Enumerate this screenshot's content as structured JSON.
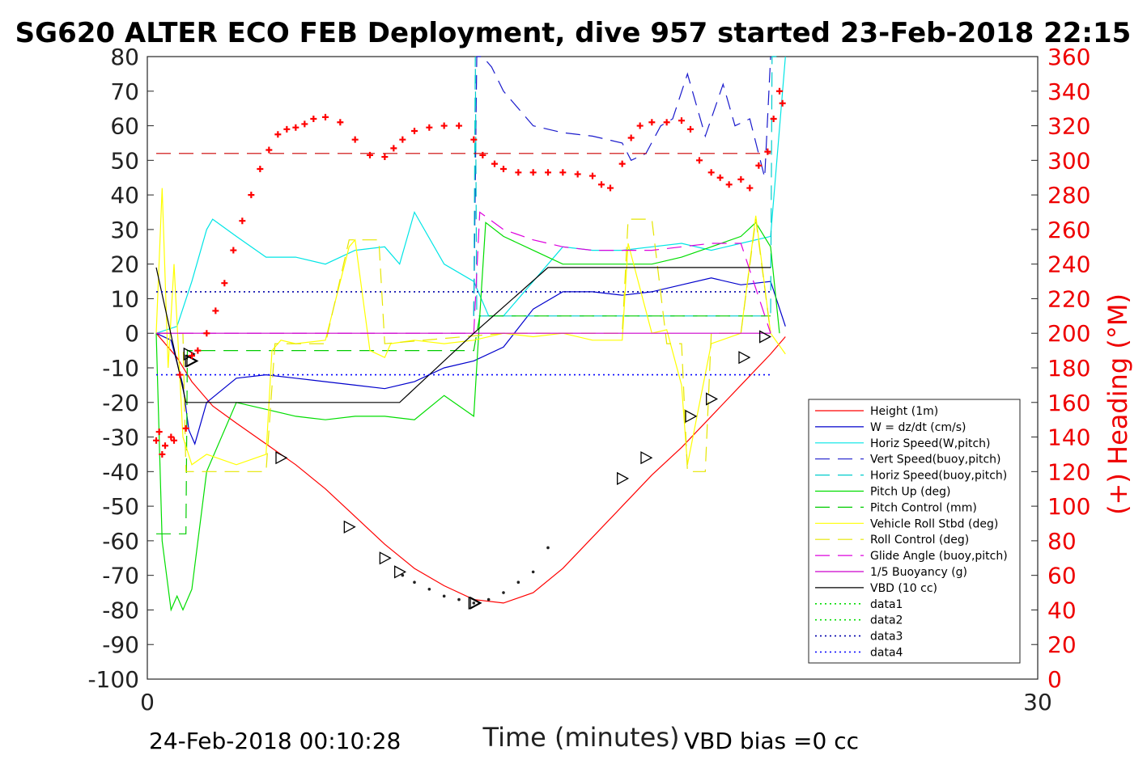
{
  "title": "SG620 ALTER ECO FEB Deployment, dive 957 started 23-Feb-2018 22:15",
  "footer": {
    "end_time": "24-Feb-2018 00:10:28",
    "vbd_bias": "VBD bias =0 cc"
  },
  "colors": {
    "height": "#ff0000",
    "w": "#0000cc",
    "horiz_speed": "#00e5e5",
    "vert_speed_buoy": "#1a1acc",
    "horiz_speed_buoy": "#00cccc",
    "pitch_up": "#00dd00",
    "pitch_control": "#00cc00",
    "vehicle_roll": "#ffff00",
    "roll_control": "#e6e600",
    "glide_angle": "#dd00dd",
    "buoyancy": "#cc00cc",
    "vbd": "#000000",
    "data1": "#00dd00",
    "data2": "#00dd00",
    "data3": "#0000aa",
    "data4": "#0000ff",
    "heading": "#ff0000"
  },
  "chart_data": {
    "type": "line",
    "title": "SG620 ALTER ECO FEB Deployment, dive 957 started 23-Feb-2018 22:15",
    "xlabel": "Time (minutes)",
    "ylabel": "",
    "y2label": "(+) Heading (°M)",
    "xlim": [
      0,
      30
    ],
    "ylim": [
      -100,
      80
    ],
    "y2lim": [
      0,
      360
    ],
    "x_ticks": [
      0,
      30
    ],
    "y_ticks": [
      80,
      70,
      60,
      50,
      40,
      30,
      20,
      10,
      0,
      -10,
      -20,
      -30,
      -40,
      -50,
      -60,
      -70,
      -80,
      -90,
      -100
    ],
    "y2_ticks": [
      360,
      340,
      320,
      300,
      280,
      260,
      240,
      220,
      200,
      180,
      160,
      140,
      120,
      100,
      80,
      60,
      40,
      20,
      0
    ],
    "legend_position": "lower-right",
    "legend": [
      "Height (1m)",
      "W = dz/dt (cm/s)",
      "Horiz Speed(W,pitch)",
      "Vert Speed(buoy,pitch)",
      "Horiz Speed(buoy,pitch)",
      "Pitch Up (deg)",
      "Pitch Control (mm)",
      "Vehicle Roll Stbd (deg)",
      "Roll Control (deg)",
      "Glide Angle (buoy,pitch)",
      "1/5 Buoyancy (g)",
      "VBD (10 cc)",
      "data1",
      "data2",
      "data3",
      "data4"
    ],
    "series": [
      {
        "name": "Height (1m)",
        "style": "solid",
        "color": "#ff0000",
        "x": [
          0.3,
          1.0,
          1.5,
          2.2,
          3.0,
          4.0,
          5.0,
          6.0,
          7.0,
          8.0,
          9.0,
          10.0,
          11.0,
          12.0,
          13.0,
          14.0,
          15.0,
          16.0,
          17.0,
          18.0,
          19.0,
          20.0,
          21.0,
          21.5
        ],
        "y": [
          0,
          -7,
          -14,
          -21,
          -26,
          -32,
          -38,
          -45,
          -53,
          -61,
          -68,
          -73,
          -77,
          -78,
          -75,
          -68,
          -59,
          -50,
          -41,
          -33,
          -24,
          -15,
          -6,
          -1
        ]
      },
      {
        "name": "W = dz/dt (cm/s)",
        "style": "solid",
        "color": "#0000cc",
        "x": [
          0.3,
          0.8,
          1.2,
          1.4,
          1.6,
          2.0,
          3.0,
          4.0,
          5.0,
          6.0,
          7.0,
          8.0,
          9.0,
          10.0,
          11.0,
          12.0,
          13.0,
          14.0,
          15.0,
          16.0,
          17.0,
          18.0,
          19.0,
          20.0,
          21.0,
          21.5
        ],
        "y": [
          0,
          -2,
          -15,
          -28,
          -32,
          -20,
          -13,
          -12,
          -13,
          -14,
          -15,
          -16,
          -14,
          -10,
          -8,
          -4,
          7,
          12,
          12,
          11,
          12,
          14,
          16,
          14,
          15,
          2
        ]
      },
      {
        "name": "Horiz Speed(W,pitch)",
        "style": "solid",
        "color": "#00e5e5",
        "x": [
          0.3,
          1.0,
          1.5,
          2.0,
          2.2,
          3.0,
          4.0,
          5.0,
          6.0,
          7.0,
          8.0,
          8.5,
          9.0,
          10.0,
          11.0,
          11.5,
          12.0,
          13.0,
          14.0,
          15.0,
          16.0,
          17.0,
          18.0,
          19.0,
          20.0,
          21.0,
          21.5
        ],
        "y": [
          0,
          2,
          15,
          30,
          33,
          28,
          22,
          22,
          20,
          24,
          25,
          20,
          35,
          20,
          15,
          5,
          5,
          15,
          25,
          24,
          24,
          25,
          26,
          24,
          26,
          28,
          80
        ]
      },
      {
        "name": "Vert Speed(buoy,pitch)",
        "style": "dashed",
        "color": "#1a1acc",
        "x": [
          11.0,
          11.1,
          11.3,
          11.6,
          12.0,
          13.0,
          14.0,
          15.0,
          16.0,
          16.3,
          16.8,
          17.3,
          17.7,
          18.2,
          18.8,
          19.4,
          19.8,
          20.3,
          20.8,
          21.0
        ],
        "y": [
          5,
          80,
          80,
          77,
          70,
          60,
          58,
          57,
          55,
          50,
          52,
          60,
          62,
          75,
          57,
          72,
          60,
          62,
          45,
          80
        ]
      },
      {
        "name": "Horiz Speed(buoy,pitch)",
        "style": "dashed",
        "color": "#00cccc",
        "x": [
          11.0,
          11.05,
          11.1,
          21.0,
          21.05,
          21.2
        ],
        "y": [
          5,
          80,
          5,
          5,
          80,
          80
        ]
      },
      {
        "name": "Pitch Up (deg)",
        "style": "solid",
        "color": "#00dd00",
        "x": [
          0.3,
          0.5,
          0.8,
          1.0,
          1.2,
          1.5,
          2.0,
          3.0,
          4.0,
          5.0,
          6.0,
          7.0,
          8.0,
          9.0,
          10.0,
          11.0,
          11.2,
          11.4,
          12.0,
          13.0,
          14.0,
          15.0,
          16.0,
          17.0,
          18.0,
          19.0,
          20.0,
          20.5,
          21.0,
          21.3
        ],
        "y": [
          0,
          -60,
          -80,
          -76,
          -80,
          -74,
          -40,
          -20,
          -22,
          -24,
          -25,
          -24,
          -24,
          -25,
          -18,
          -24,
          5,
          32,
          28,
          24,
          20,
          20,
          20,
          20,
          22,
          25,
          28,
          32,
          25,
          0
        ]
      },
      {
        "name": "Pitch Control (mm)",
        "style": "dashed",
        "color": "#00cc00",
        "x": [
          0.3,
          1.3,
          1.35,
          3.0,
          5.0,
          8.0,
          11.0,
          11.2,
          14.0,
          17.0,
          20.0,
          21.0
        ],
        "y": [
          -58,
          -58,
          -5,
          -5,
          -5,
          -5,
          -5,
          5,
          5,
          5,
          5,
          5
        ]
      },
      {
        "name": "Vehicle Roll Stbd (deg)",
        "style": "solid",
        "color": "#ffff00",
        "x": [
          0.3,
          0.5,
          0.7,
          0.9,
          1.2,
          1.5,
          2.0,
          3.0,
          4.0,
          4.2,
          4.5,
          5.0,
          6.0,
          6.8,
          7.0,
          7.5,
          8.0,
          8.2,
          9.0,
          10.0,
          11.0,
          12.0,
          13.0,
          14.0,
          15.0,
          16.0,
          16.2,
          17.0,
          17.5,
          18.0,
          18.2,
          19.0,
          20.0,
          20.5,
          21.0,
          21.5
        ],
        "y": [
          0,
          42,
          -10,
          20,
          -30,
          -38,
          -35,
          -38,
          -35,
          -5,
          -2,
          -3,
          -2,
          25,
          27,
          -5,
          -7,
          -3,
          -2,
          -3,
          -2,
          0,
          -1,
          0,
          -2,
          -2,
          26,
          0,
          1,
          -15,
          -38,
          -3,
          0,
          34,
          0,
          -6
        ]
      },
      {
        "name": "Roll Control (deg)",
        "style": "dashed",
        "color": "#e6e600",
        "x": [
          0.3,
          1.2,
          1.3,
          3.0,
          4.0,
          4.3,
          6.0,
          6.8,
          7.8,
          8.0,
          12.0,
          16.0,
          16.2,
          17.0,
          17.5,
          18.0,
          18.2,
          18.8,
          19.0,
          20.0,
          20.5,
          21.0
        ],
        "y": [
          0,
          0,
          -40,
          -40,
          -40,
          -3,
          -3,
          27,
          27,
          -3,
          0,
          0,
          33,
          33,
          -3,
          -3,
          -40,
          -40,
          0,
          0,
          33,
          0
        ]
      },
      {
        "name": "Glide Angle (buoy,pitch)",
        "style": "dashed",
        "color": "#dd00dd",
        "x": [
          0.3,
          11.0,
          11.2,
          12.0,
          13.0,
          14.0,
          15.0,
          16.0,
          17.0,
          18.0,
          19.0,
          20.0,
          21.0
        ],
        "y": [
          0,
          0,
          35,
          30,
          27,
          25,
          24,
          24,
          24,
          25,
          26,
          26,
          0
        ]
      },
      {
        "name": "1/5 Buoyancy (g)",
        "style": "solid",
        "color": "#cc00cc",
        "x": [
          0.3,
          21.0
        ],
        "y": [
          0,
          0
        ]
      },
      {
        "name": "VBD (10 cc)",
        "style": "solid",
        "color": "#000000",
        "x": [
          0.3,
          1.3,
          8.5,
          11.0,
          13.5,
          21.0
        ],
        "y": [
          19,
          -20,
          -20,
          0,
          19,
          19
        ]
      },
      {
        "name": "data1",
        "style": "dotted",
        "color": "#00dd00",
        "x": [],
        "y": []
      },
      {
        "name": "data2",
        "style": "dotted",
        "color": "#00dd00",
        "x": [],
        "y": []
      },
      {
        "name": "data3",
        "style": "dotted",
        "color": "#0000aa",
        "x": [
          0.3,
          21.0
        ],
        "y": [
          12,
          12
        ]
      },
      {
        "name": "data4",
        "style": "dotted",
        "color": "#0000ff",
        "x": [
          0.3,
          21.0
        ],
        "y": [
          -12,
          -12
        ]
      },
      {
        "name": "Heading reference",
        "style": "dashed",
        "color": "#cc0000",
        "axis": "right",
        "x": [
          0.3,
          21.0
        ],
        "y": [
          304,
          304
        ]
      }
    ],
    "heading_points": {
      "name": "(+) Heading (°M)",
      "axis": "right",
      "marker": "+",
      "x": [
        0.3,
        0.4,
        0.5,
        0.6,
        0.8,
        0.9,
        1.1,
        1.3,
        1.5,
        1.7,
        2.0,
        2.3,
        2.6,
        2.9,
        3.2,
        3.5,
        3.8,
        4.1,
        4.4,
        4.7,
        5.0,
        5.3,
        5.6,
        6.0,
        6.5,
        7.0,
        7.5,
        8.0,
        8.3,
        8.6,
        9.0,
        9.5,
        10.0,
        10.5,
        11.0,
        11.3,
        11.7,
        12.0,
        12.5,
        13.0,
        13.5,
        14.0,
        14.5,
        15.0,
        15.3,
        15.6,
        16.0,
        16.3,
        16.6,
        17.0,
        17.5,
        18.0,
        18.3,
        18.6,
        19.0,
        19.3,
        19.6,
        20.0,
        20.3,
        20.6,
        20.9,
        21.1,
        21.3,
        21.4
      ],
      "y": [
        138,
        143,
        130,
        135,
        140,
        138,
        176,
        145,
        187,
        190,
        200,
        213,
        229,
        248,
        265,
        280,
        295,
        306,
        315,
        318,
        319,
        321,
        324,
        325,
        322,
        312,
        303,
        302,
        307,
        312,
        317,
        319,
        320,
        320,
        312,
        303,
        298,
        295,
        293,
        293,
        293,
        293,
        292,
        291,
        286,
        284,
        298,
        313,
        320,
        322,
        322,
        323,
        318,
        300,
        293,
        290,
        286,
        289,
        284,
        297,
        305,
        324,
        340,
        333
      ]
    },
    "triangle_markers": {
      "x": [
        1.4,
        1.45,
        1.5,
        4.5,
        6.8,
        8.0,
        8.5,
        11.0,
        11.05,
        16.0,
        16.8,
        18.3,
        19.0,
        20.1,
        20.8
      ],
      "y": [
        -6,
        -8,
        -8,
        -36,
        -56,
        -65,
        -69,
        -78,
        -78,
        -42,
        -36,
        -24,
        -19,
        -7,
        -1
      ]
    },
    "dot_markers": {
      "x": [
        8.6,
        9.0,
        9.5,
        10.0,
        10.5,
        11.0,
        11.5,
        12.0,
        12.5,
        13.0,
        13.5
      ],
      "y": [
        -70,
        -72,
        -74,
        -76,
        -77,
        -78,
        -77,
        -75,
        -72,
        -69,
        -62
      ]
    }
  }
}
